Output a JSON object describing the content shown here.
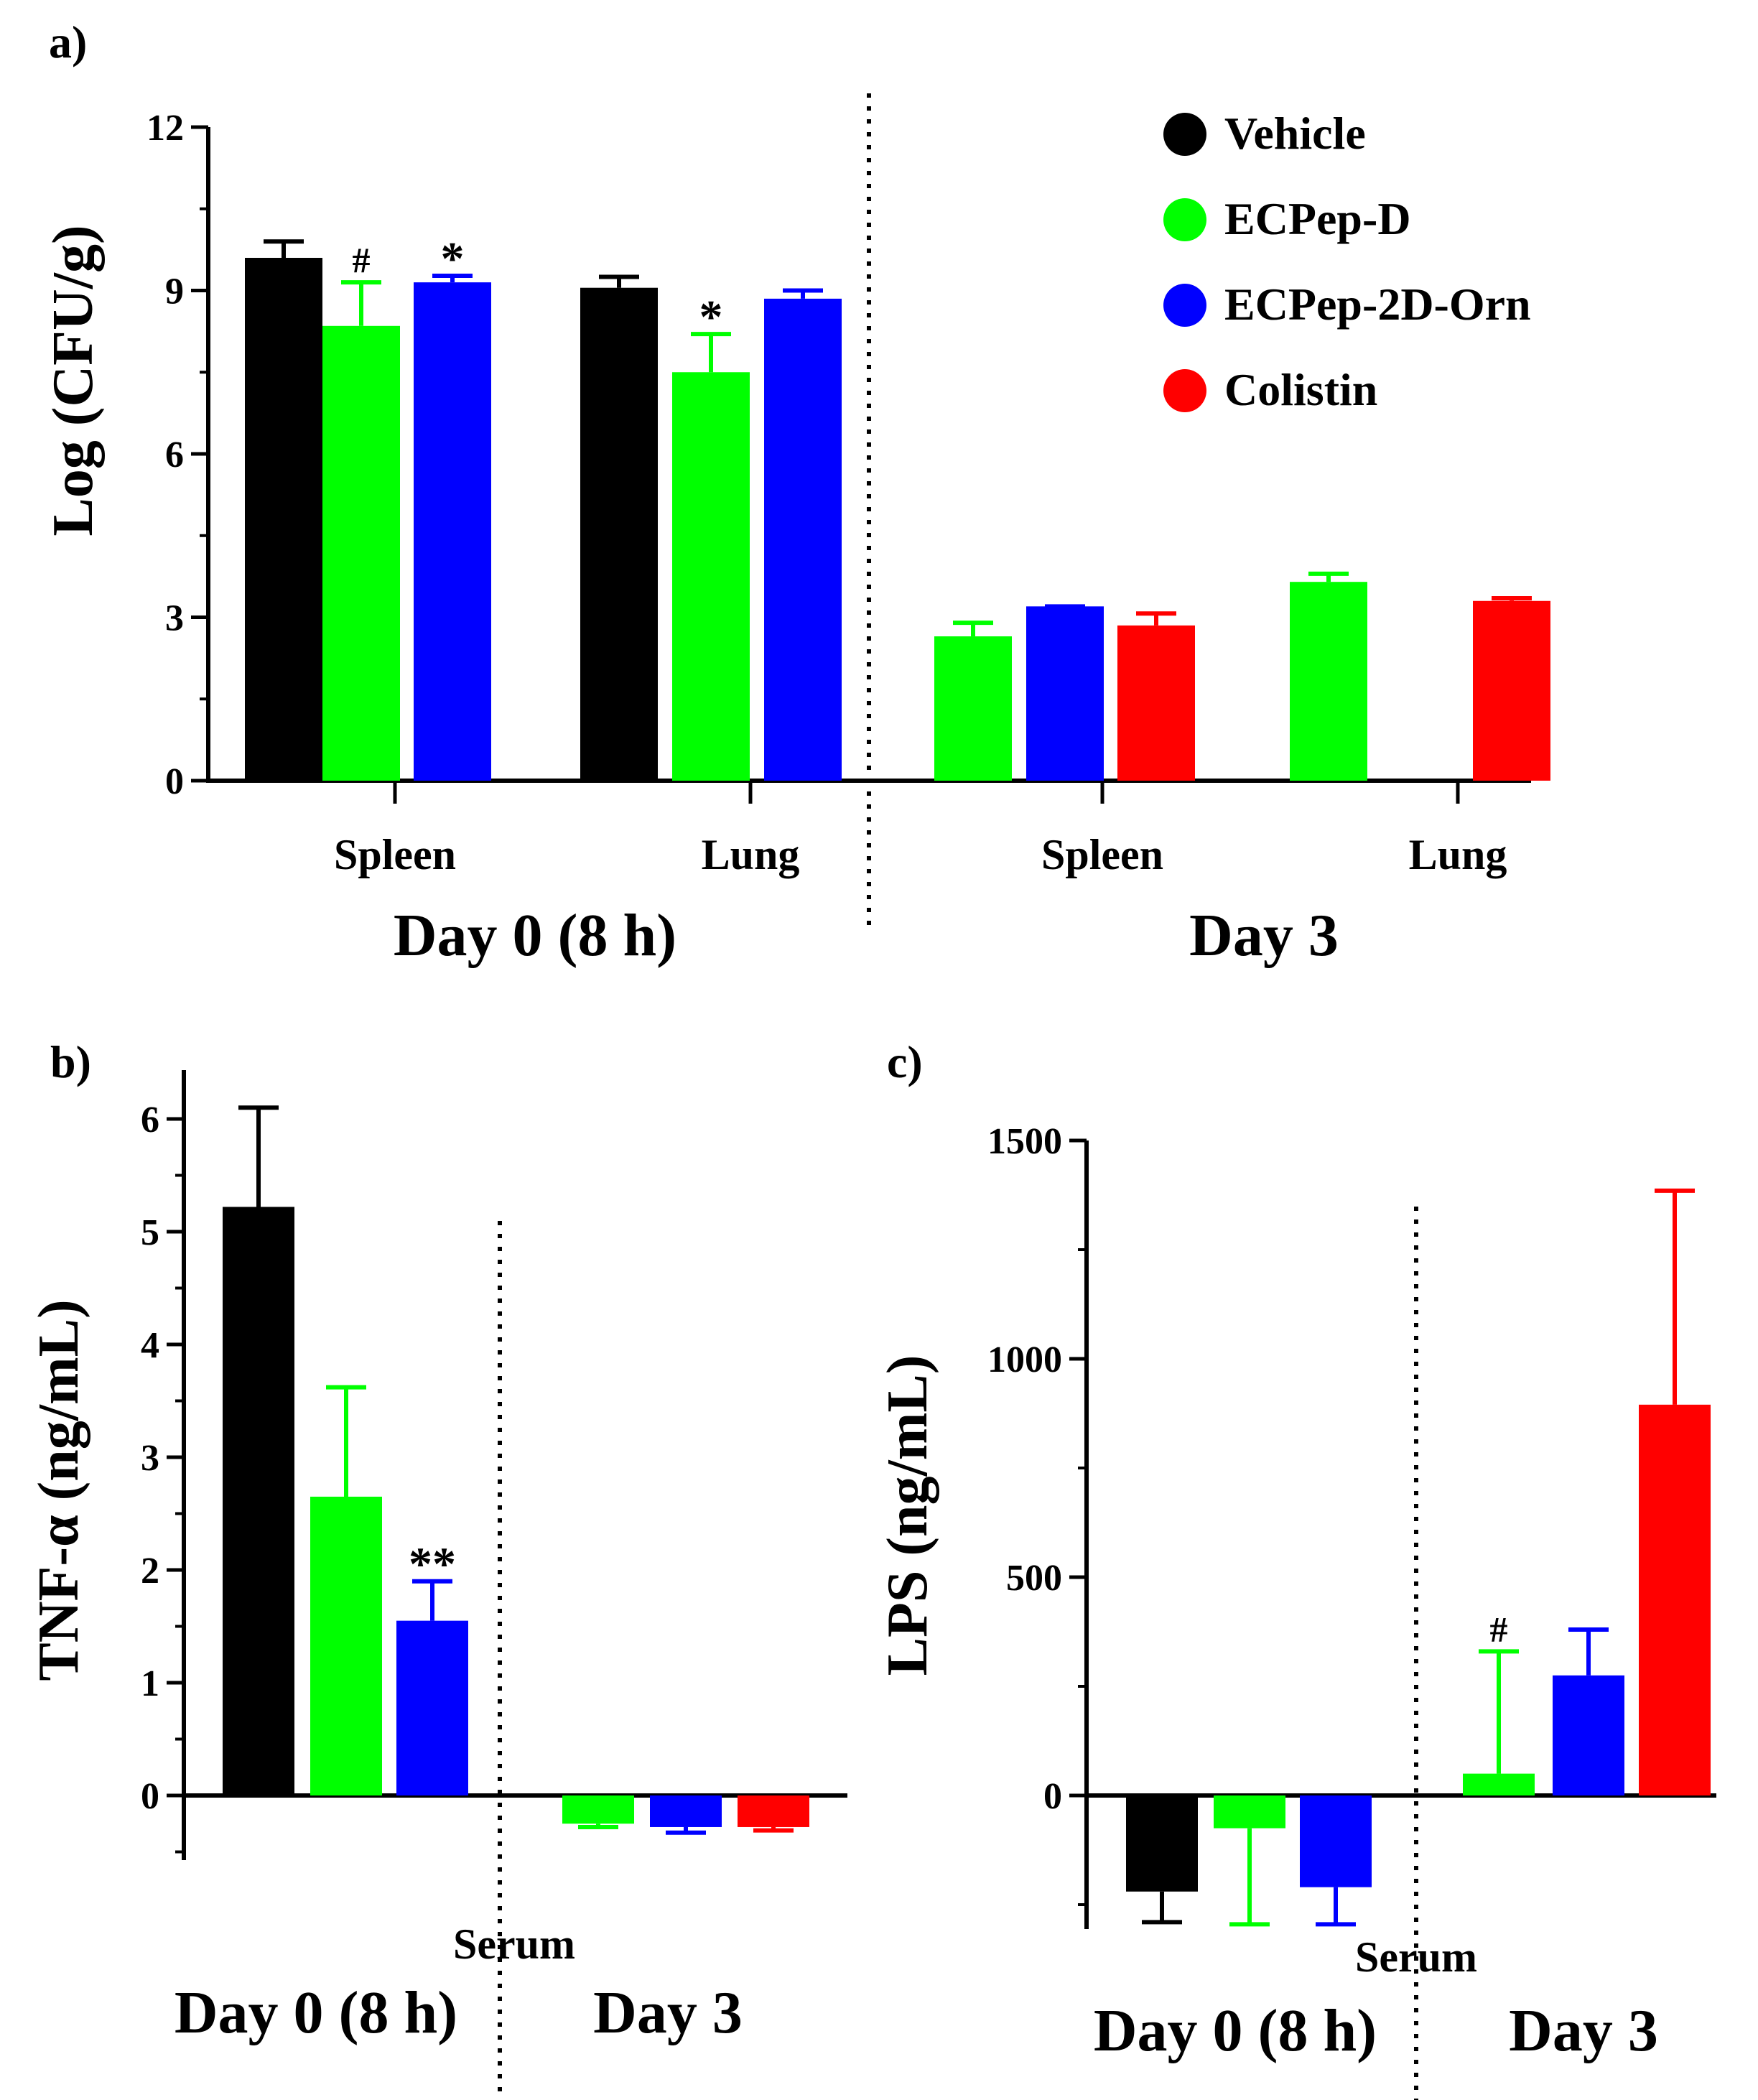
{
  "colors": {
    "Vehicle": "#000000",
    "ECPep-D": "#00ff00",
    "ECPep-2D-Orn": "#0000ff",
    "Colistin": "#ff0000"
  },
  "chart_data": [
    {
      "id": "a",
      "panel_label": "a)",
      "type": "bar",
      "ylabel": "Log (CFU/g)",
      "ylim": [
        0,
        12
      ],
      "yticks": [
        "0",
        "3",
        "6",
        "9",
        "12"
      ],
      "categories": [
        "Spleen",
        "Lung",
        "Spleen",
        "Lung"
      ],
      "groups": [
        {
          "label": "Day 0 (8 h)",
          "categories": [
            0,
            1
          ]
        },
        {
          "label": "Day 3",
          "categories": [
            2,
            3
          ]
        }
      ],
      "legend": {
        "position": "top-right",
        "entries": [
          "Vehicle",
          "ECPep-D",
          "ECPep-2D-Orn",
          "Colistin"
        ]
      },
      "series": [
        {
          "name": "Vehicle",
          "values": [
            9.6,
            9.05,
            null,
            null
          ],
          "errors": [
            0.3,
            0.2,
            null,
            null
          ],
          "annotations": [
            "",
            "",
            "",
            ""
          ]
        },
        {
          "name": "ECPep-D",
          "values": [
            8.35,
            7.5,
            2.65,
            3.65
          ],
          "errors": [
            0.8,
            0.7,
            0.25,
            0.15
          ],
          "annotations": [
            "#",
            "*",
            "",
            ""
          ]
        },
        {
          "name": "ECPep-2D-Orn",
          "values": [
            9.15,
            8.85,
            3.2,
            null
          ],
          "errors": [
            0.12,
            0.15,
            0.0,
            null
          ],
          "annotations": [
            "*",
            "",
            "",
            ""
          ]
        },
        {
          "name": "Colistin",
          "values": [
            null,
            null,
            2.85,
            3.3
          ],
          "errors": [
            null,
            null,
            0.22,
            0.05
          ],
          "annotations": [
            "",
            "",
            "",
            ""
          ]
        }
      ]
    },
    {
      "id": "b",
      "panel_label": "b)",
      "type": "bar",
      "ylabel": "TNF-α (ng/mL)",
      "ylim": [
        -0.6,
        6.5
      ],
      "yticks": [
        "0",
        "1",
        "2",
        "3",
        "4",
        "5",
        "6"
      ],
      "category_label": "Serum",
      "groups": [
        {
          "label": "Day 0 (8 h)"
        },
        {
          "label": "Day 3"
        }
      ],
      "series": [
        {
          "name": "Vehicle",
          "values": [
            5.22,
            null
          ],
          "errors": [
            0.88,
            null
          ],
          "annotations": [
            "",
            ""
          ]
        },
        {
          "name": "ECPep-D",
          "values": [
            2.65,
            -0.25
          ],
          "errors": [
            0.97,
            0.03
          ],
          "annotations": [
            "",
            ""
          ]
        },
        {
          "name": "ECPep-2D-Orn",
          "values": [
            1.55,
            -0.28
          ],
          "errors": [
            0.35,
            0.05
          ],
          "annotations": [
            "**",
            ""
          ]
        },
        {
          "name": "Colistin",
          "values": [
            null,
            -0.28
          ],
          "errors": [
            null,
            0.03
          ],
          "annotations": [
            "",
            ""
          ]
        }
      ]
    },
    {
      "id": "c",
      "panel_label": "c)",
      "type": "bar",
      "ylabel": "LPS (ng/mL)",
      "ylim": [
        -300,
        1500
      ],
      "yticks": [
        "0",
        "500",
        "1000",
        "1500"
      ],
      "category_label": "Serum",
      "groups": [
        {
          "label": "Day 0 (8 h)"
        },
        {
          "label": "Day 3"
        }
      ],
      "series": [
        {
          "name": "Vehicle",
          "values": [
            -220,
            null
          ],
          "errors": [
            70,
            null
          ],
          "annotations": [
            "",
            ""
          ]
        },
        {
          "name": "ECPep-D",
          "values": [
            -75,
            50
          ],
          "errors": [
            220,
            280
          ],
          "annotations": [
            "",
            "#"
          ]
        },
        {
          "name": "ECPep-2D-Orn",
          "values": [
            -210,
            275
          ],
          "errors": [
            85,
            105
          ],
          "annotations": [
            "",
            ""
          ]
        },
        {
          "name": "Colistin",
          "values": [
            null,
            895
          ],
          "errors": [
            null,
            490
          ],
          "annotations": [
            "",
            ""
          ]
        }
      ]
    }
  ]
}
